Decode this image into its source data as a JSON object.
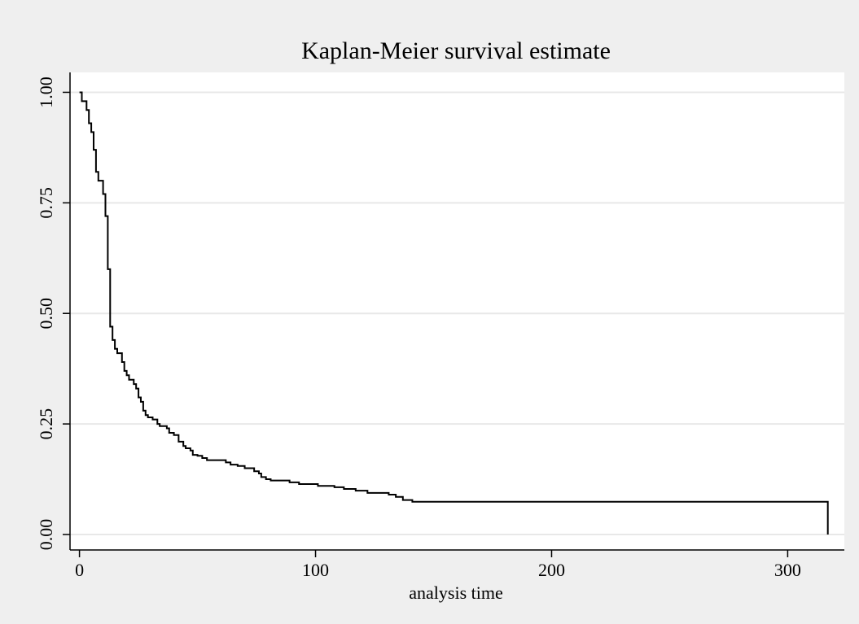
{
  "chart_data": {
    "type": "line",
    "title": "Kaplan-Meier survival estimate",
    "xlabel": "analysis time",
    "ylabel": "",
    "xlim": [
      -4,
      324
    ],
    "ylim": [
      -0.035,
      1.045
    ],
    "x_ticks": [
      0,
      100,
      200,
      300
    ],
    "x_tick_labels": [
      "0",
      "100",
      "200",
      "300"
    ],
    "y_ticks": [
      0,
      0.25,
      0.5,
      0.75,
      1
    ],
    "y_tick_labels": [
      "0.00",
      "0.25",
      "0.50",
      "0.75",
      "1.00"
    ],
    "grid": "horizontal",
    "legend": "none",
    "line_style": "step",
    "series": [
      {
        "points": [
          [
            0,
            1.0
          ],
          [
            1,
            0.98
          ],
          [
            3,
            0.96
          ],
          [
            4,
            0.93
          ],
          [
            5,
            0.91
          ],
          [
            6,
            0.87
          ],
          [
            7,
            0.82
          ],
          [
            8,
            0.8
          ],
          [
            10,
            0.77
          ],
          [
            11,
            0.72
          ],
          [
            12,
            0.6
          ],
          [
            13,
            0.47
          ],
          [
            14,
            0.44
          ],
          [
            15,
            0.42
          ],
          [
            16,
            0.41
          ],
          [
            18,
            0.39
          ],
          [
            19,
            0.37
          ],
          [
            20,
            0.36
          ],
          [
            21,
            0.35
          ],
          [
            23,
            0.34
          ],
          [
            24,
            0.33
          ],
          [
            25,
            0.31
          ],
          [
            26,
            0.3
          ],
          [
            27,
            0.28
          ],
          [
            28,
            0.27
          ],
          [
            29,
            0.265
          ],
          [
            31,
            0.26
          ],
          [
            33,
            0.25
          ],
          [
            34,
            0.245
          ],
          [
            37,
            0.24
          ],
          [
            38,
            0.23
          ],
          [
            40,
            0.225
          ],
          [
            42,
            0.21
          ],
          [
            44,
            0.2
          ],
          [
            45,
            0.195
          ],
          [
            47,
            0.19
          ],
          [
            48,
            0.18
          ],
          [
            50,
            0.178
          ],
          [
            52,
            0.173
          ],
          [
            54,
            0.168
          ],
          [
            62,
            0.163
          ],
          [
            64,
            0.158
          ],
          [
            67,
            0.155
          ],
          [
            70,
            0.15
          ],
          [
            74,
            0.143
          ],
          [
            76,
            0.138
          ],
          [
            77,
            0.13
          ],
          [
            79,
            0.125
          ],
          [
            81,
            0.122
          ],
          [
            89,
            0.118
          ],
          [
            93,
            0.114
          ],
          [
            101,
            0.11
          ],
          [
            108,
            0.107
          ],
          [
            112,
            0.103
          ],
          [
            117,
            0.099
          ],
          [
            122,
            0.094
          ],
          [
            131,
            0.09
          ],
          [
            134,
            0.085
          ],
          [
            137,
            0.078
          ],
          [
            141,
            0.074
          ],
          [
            317,
            0.074
          ],
          [
            317,
            0.0
          ]
        ],
        "color": "#000000"
      }
    ]
  },
  "colors": {
    "background": "#efefef",
    "plot_area": "#ffffff",
    "gridline": "#e8e8e8",
    "line": "#000000"
  }
}
